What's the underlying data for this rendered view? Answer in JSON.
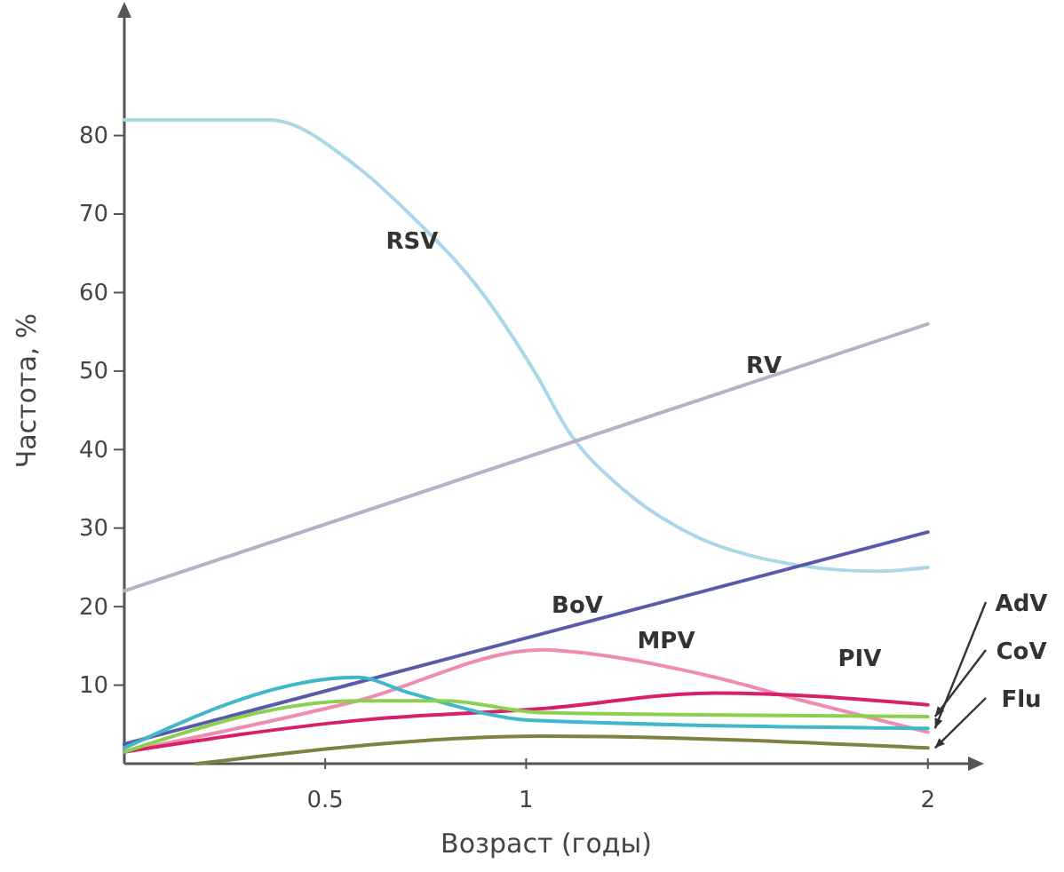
{
  "chart_data": {
    "type": "line",
    "xlabel": "Возраст (годы)",
    "ylabel": "Частота, %",
    "xlim": [
      0,
      2.1
    ],
    "ylim": [
      0,
      95
    ],
    "xticks": [
      0.5,
      1,
      2
    ],
    "yticks": [
      10,
      20,
      30,
      40,
      50,
      60,
      70,
      80
    ],
    "grid": false,
    "legend": false,
    "marker": "none",
    "line_style": "solid",
    "series": [
      {
        "name": "RSV",
        "color": "#a9d8e6",
        "x": [
          0,
          0.36,
          0.58,
          0.71,
          0.89,
          1.02,
          1.11,
          1.24,
          1.42,
          1.6,
          1.87,
          2
        ],
        "values": [
          82,
          82,
          76,
          70,
          60,
          50,
          42,
          35,
          29,
          26,
          24.5,
          25
        ]
      },
      {
        "name": "RV",
        "color": "#b8b0c8",
        "x": [
          0,
          2
        ],
        "values": [
          22,
          56
        ]
      },
      {
        "name": "BoV",
        "color": "#5a5aa8",
        "x": [
          0,
          2
        ],
        "values": [
          2.5,
          29.5
        ]
      },
      {
        "name": "MPV",
        "color": "#f08cb0",
        "x": [
          0,
          0.58,
          1.04,
          1.16,
          1.47,
          1.69,
          2
        ],
        "values": [
          1.5,
          8,
          14.5,
          14,
          11,
          8,
          4
        ]
      },
      {
        "name": "PIV",
        "color": "#d8206a",
        "x": [
          0,
          0.58,
          1.04,
          1.47,
          2
        ],
        "values": [
          1.5,
          5.5,
          7,
          9,
          7.5
        ]
      },
      {
        "name": "AdV",
        "color": "#40b8c8",
        "x": [
          0,
          0.58,
          0.71,
          1.02,
          2
        ],
        "values": [
          2,
          11,
          9,
          5.5,
          4.5
        ]
      },
      {
        "name": "CoV",
        "color": "#8cd050",
        "x": [
          0,
          0.58,
          0.8,
          1.04,
          2
        ],
        "values": [
          1.5,
          8,
          8,
          6.5,
          6
        ]
      },
      {
        "name": "Flu",
        "color": "#808040",
        "x": [
          0.18,
          1.04,
          2
        ],
        "values": [
          0,
          3.5,
          2
        ]
      }
    ]
  }
}
